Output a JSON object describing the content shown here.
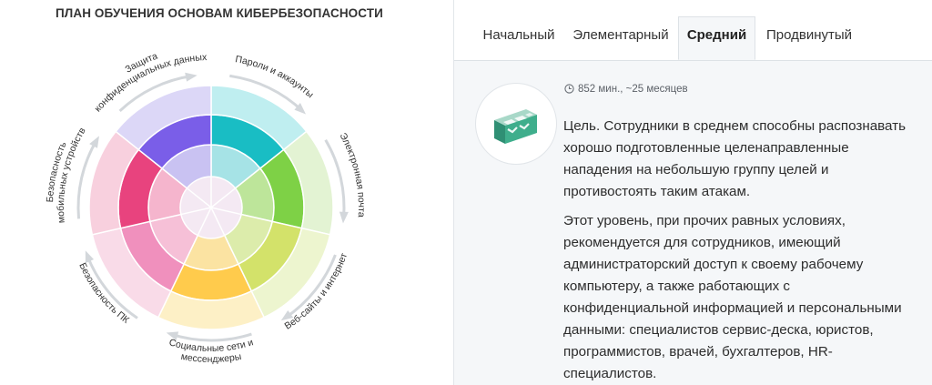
{
  "title": "ПЛАН ОБУЧЕНИЯ ОСНОВАМ КИБЕРБЕЗОПАСНОСТИ",
  "wheel": {
    "sections": [
      {
        "label": "Пароли и аккаунты",
        "colors": [
          "#bfeef0",
          "#a6e3e6",
          "#19bdc4"
        ]
      },
      {
        "label": "Электронная почта",
        "colors": [
          "#e3f3d3",
          "#bde59a",
          "#7ed146"
        ]
      },
      {
        "label": "Веб-сайты и интернет",
        "colors": [
          "#edf5cf",
          "#dcecab",
          "#d3e26a"
        ]
      },
      {
        "label": "Социальные сети и мессенджеры",
        "colors": [
          "#fdf0c6",
          "#fbe3a2",
          "#ffcb4c"
        ]
      },
      {
        "label": "Безопасность ПК",
        "colors": [
          "#f9dbe8",
          "#f6c0d7",
          "#f090bd"
        ]
      },
      {
        "label": "Безопасность мобильных устройств",
        "colors": [
          "#f8d0de",
          "#f5b5cd",
          "#e8437e"
        ]
      },
      {
        "label": "Защита конфиденциальных данных",
        "colors": [
          "#dcd7f7",
          "#c9c2f2",
          "#7a5ee8"
        ]
      }
    ]
  },
  "tabs": [
    {
      "label": "Начальный",
      "active": false
    },
    {
      "label": "Элементарный",
      "active": false
    },
    {
      "label": "Средний",
      "active": true
    },
    {
      "label": "Продвинутый",
      "active": false
    }
  ],
  "level": {
    "icon": "building-blocks-icon",
    "duration": "852 мин., ~25 месяцев",
    "goal": "Цель. Сотрудники в среднем способны распознавать хорошо подготовленные целенаправленные нападения на небольшую группу целей и противостоять таким атакам.",
    "description": "Этот уровень, при прочих равных условиях, рекомендуется для сотрудников, имеющий администраторский доступ к своему рабочему компьютеру, а также работающих с конфиденциальной информацией и персональными данными: специалистов сервис-деска, юристов, программистов, врачей, бухгалтеров, HR-специалистов."
  }
}
